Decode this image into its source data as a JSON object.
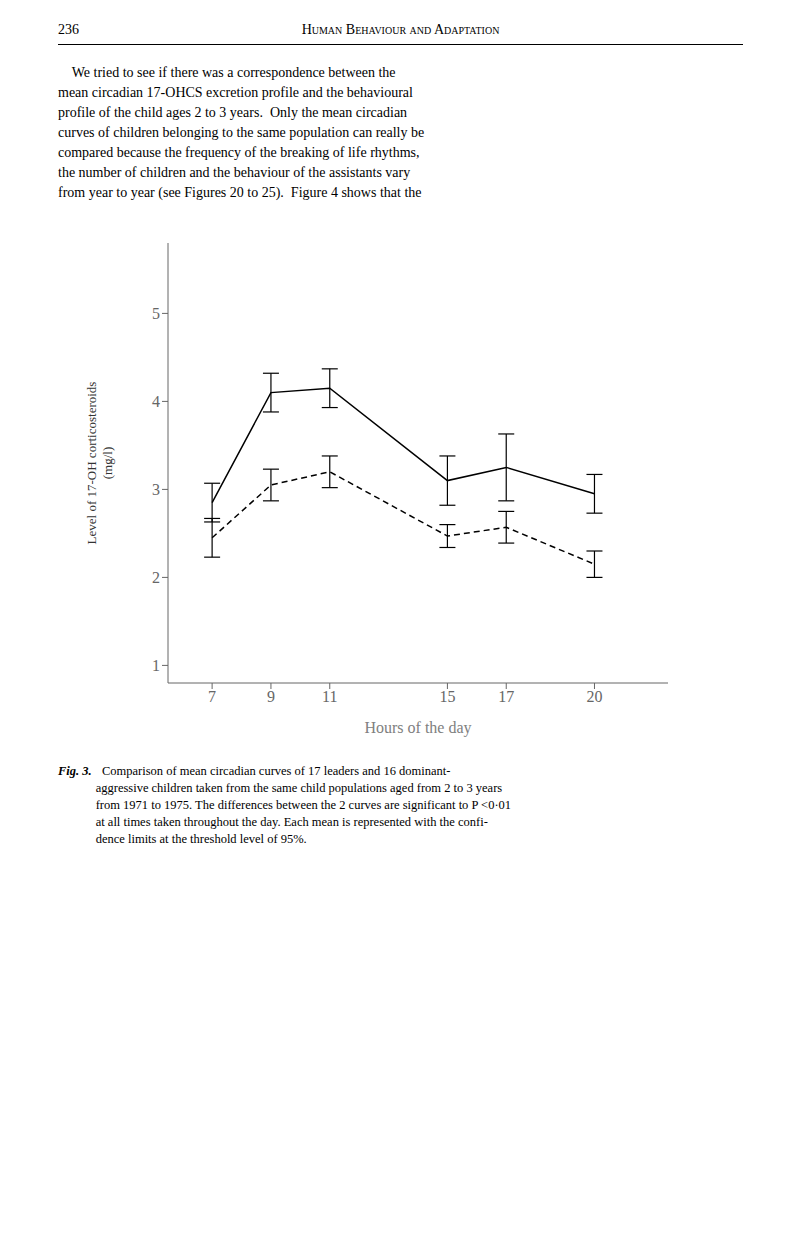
{
  "chart_data": {
    "type": "line",
    "xlabel": "Hours of the day",
    "ylabel": "Level of 17-OH corticosteroids\n(mg/l)",
    "x": [
      7,
      9,
      11,
      15,
      17,
      20
    ],
    "xlim": [
      5.5,
      22.5
    ],
    "xticks": [
      7,
      9,
      11,
      15,
      17,
      20
    ],
    "ylim": [
      0.8,
      5.8
    ],
    "yticks": [
      1,
      2,
      3,
      4,
      5
    ],
    "grid": false,
    "series": [
      {
        "color": "#000000",
        "line_style": "solid",
        "values": [
          2.85,
          4.1,
          4.15,
          3.1,
          3.25,
          2.95
        ],
        "yerr": [
          0.22,
          0.22,
          0.22,
          0.28,
          0.38,
          0.22
        ]
      },
      {
        "color": "#000000",
        "line_style": "dashed",
        "values": [
          2.45,
          3.05,
          3.2,
          2.47,
          2.57,
          2.15
        ],
        "yerr": [
          0.22,
          0.18,
          0.18,
          0.13,
          0.18,
          0.15
        ]
      }
    ],
    "annotations": [
      "236",
      "Human Behaviour and Adaptation",
      "    We tried to see if there was a correspondence between the",
      "mean circadian 17-OHCS excretion profile and the behavioural",
      "profile of the child ages 2 to 3 years.  Only the mean circadian",
      "curves of children belonging to the same population can really be",
      "compared because the frequency of the breaking of life rhythms,",
      "the number of children and the behaviour of the assistants vary",
      "from year to year (see Figures 20 to 25).  Figure 4 shows that the",
      "Fig. 3.",
      "  Comparison of mean circadian curves of 17 leaders and 16 dominant-",
      "aggressive children taken from the same child populations aged from 2 to 3 years",
      "from 1971 to 1975. The differences between the 2 curves are significant to P <0·01",
      "at all times taken throughout the day. Each mean is represented with the confi-",
      "dence limits at the threshold level of 95%."
    ]
  }
}
